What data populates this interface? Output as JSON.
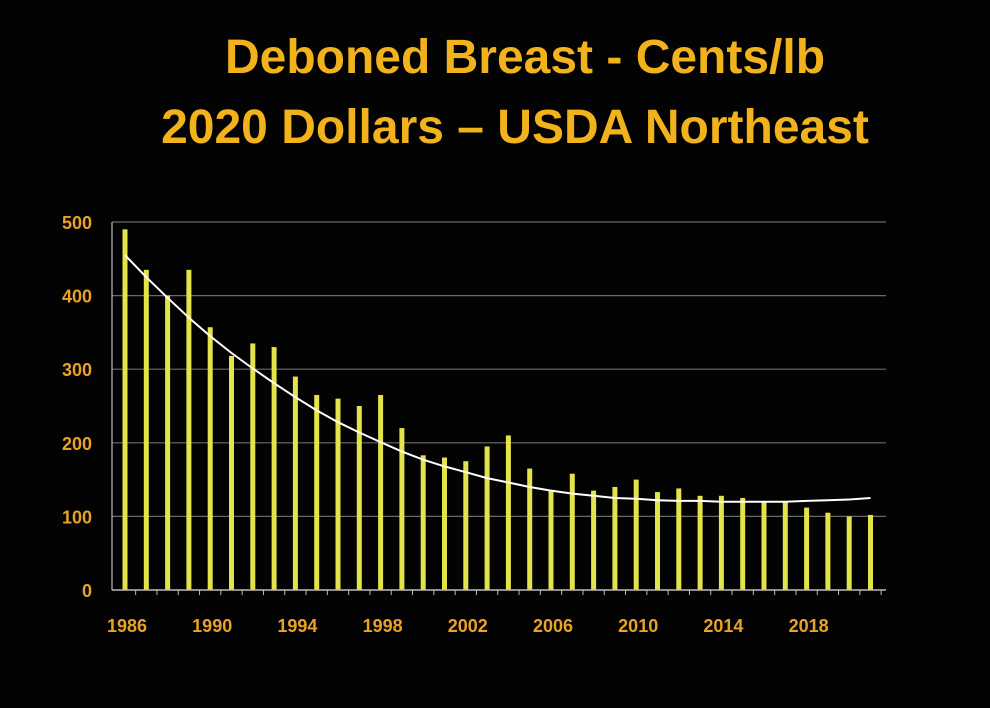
{
  "title_lines": [
    "Deboned Breast - Cents/lb",
    "2020 Dollars – USDA Northeast"
  ],
  "colors": {
    "background": "#030303",
    "title": "#f2b21c",
    "tick_label": "#e8a227",
    "bar": "#e3e34a",
    "trend": "#ffffff",
    "gridline": "#6a6a6a",
    "axis": "#bdbdbd"
  },
  "chart_data": {
    "type": "bar",
    "title": "Deboned Breast - Cents/lb 2020 Dollars – USDA Northeast",
    "xlabel": "",
    "ylabel": "",
    "ylim": [
      0,
      500
    ],
    "yticks": [
      0,
      100,
      200,
      300,
      400,
      500
    ],
    "grid": true,
    "categories": [
      1986,
      1987,
      1988,
      1989,
      1990,
      1991,
      1992,
      1993,
      1994,
      1995,
      1996,
      1997,
      1998,
      1999,
      2000,
      2001,
      2002,
      2003,
      2004,
      2005,
      2006,
      2007,
      2008,
      2009,
      2010,
      2011,
      2012,
      2013,
      2014,
      2015,
      2016,
      2017,
      2018,
      2019,
      2020,
      2021
    ],
    "xtick_labels": [
      1986,
      1990,
      1994,
      1998,
      2002,
      2006,
      2010,
      2014,
      2018
    ],
    "series": [
      {
        "name": "Deboned Breast (cents/lb, 2020 dollars)",
        "values": [
          490,
          435,
          400,
          435,
          357,
          318,
          335,
          330,
          290,
          265,
          260,
          250,
          265,
          220,
          183,
          180,
          175,
          195,
          210,
          165,
          135,
          158,
          135,
          140,
          150,
          133,
          138,
          128,
          128,
          125,
          120,
          120,
          112,
          105,
          100,
          102
        ]
      }
    ],
    "trendline": {
      "type": "polynomial",
      "values": [
        455,
        425,
        397,
        370,
        345,
        322,
        301,
        281,
        262,
        244,
        228,
        214,
        201,
        188,
        177,
        168,
        160,
        152,
        146,
        140,
        135,
        131,
        128,
        125,
        124,
        122,
        121,
        121,
        120,
        120,
        120,
        120,
        121,
        122,
        123,
        125
      ]
    }
  }
}
